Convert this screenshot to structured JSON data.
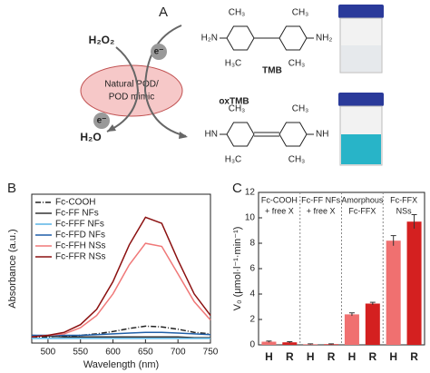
{
  "panel_a": {
    "label": "A",
    "reactant": "H₂O₂",
    "product": "H₂O",
    "electron": "e⁻",
    "enzyme": [
      "Natural POD/",
      "POD mimic"
    ],
    "substrate": "TMB",
    "oxidized": "oxTMB",
    "tmb_groups": [
      "H₂N",
      "NH₂",
      "CH₃",
      "CH₃",
      "H₃C",
      "CH₃"
    ],
    "oxtmb_groups": [
      "HN",
      "NH",
      "CH₃",
      "CH₃",
      "H₃C",
      "CH₃"
    ]
  },
  "chart_data": [
    {
      "panel": "B",
      "type": "line",
      "xlabel": "Wavelength (nm)",
      "ylabel": "Absorbance (a.u.)",
      "x": [
        475,
        500,
        525,
        550,
        575,
        600,
        625,
        650,
        675,
        700,
        725,
        750
      ],
      "xlim": [
        475,
        750
      ],
      "xticks": [
        500,
        550,
        600,
        650,
        700,
        750
      ],
      "ylim": [
        -0.02,
        0.95
      ],
      "legend": "upper left",
      "series": [
        {
          "name": "Fc-COOH",
          "color": "#222222",
          "style": "dashdot",
          "values": [
            0.02,
            0.02,
            0.025,
            0.03,
            0.04,
            0.055,
            0.075,
            0.09,
            0.085,
            0.07,
            0.05,
            0.04
          ]
        },
        {
          "name": "Fc-FF NFs",
          "color": "#333333",
          "style": "solid",
          "values": [
            0.03,
            0.025,
            0.02,
            0.02,
            0.02,
            0.02,
            0.02,
            0.02,
            0.02,
            0.02,
            0.015,
            0.015
          ]
        },
        {
          "name": "Fc-FFF NFs",
          "color": "#5ab4e5",
          "style": "solid",
          "values": [
            0.01,
            0.01,
            0.01,
            0.01,
            0.01,
            0.01,
            0.01,
            0.01,
            0.01,
            0.01,
            0.01,
            0.01
          ]
        },
        {
          "name": "Fc-FFD NFs",
          "color": "#1f5fa8",
          "style": "solid",
          "values": [
            0.03,
            0.03,
            0.03,
            0.03,
            0.035,
            0.04,
            0.045,
            0.05,
            0.05,
            0.045,
            0.04,
            0.035
          ]
        },
        {
          "name": "Fc-FFH NSs",
          "color": "#f07878",
          "style": "solid",
          "values": [
            0.02,
            0.03,
            0.04,
            0.08,
            0.16,
            0.3,
            0.49,
            0.63,
            0.61,
            0.43,
            0.25,
            0.13
          ]
        },
        {
          "name": "Fc-FFR NSs",
          "color": "#8b1010",
          "style": "solid",
          "values": [
            0.02,
            0.03,
            0.05,
            0.1,
            0.2,
            0.38,
            0.62,
            0.8,
            0.76,
            0.52,
            0.3,
            0.16
          ]
        }
      ]
    },
    {
      "panel": "C",
      "type": "bar",
      "ylabel": "V₀ (μmol·l⁻¹·min⁻¹)",
      "categories": [
        "H",
        "R",
        "H",
        "R",
        "H",
        "R",
        "H",
        "R"
      ],
      "values": [
        0.25,
        0.2,
        0.05,
        0.05,
        2.4,
        3.25,
        8.2,
        9.7
      ],
      "errors": [
        0.05,
        0.05,
        0.03,
        0.03,
        0.12,
        0.1,
        0.4,
        0.55
      ],
      "colors": [
        "#f07070",
        "#d42020",
        "#f07070",
        "#d42020",
        "#f07070",
        "#d42020",
        "#f07070",
        "#d42020"
      ],
      "groups": [
        {
          "lines": [
            "Fc-COOH",
            "+ free X"
          ]
        },
        {
          "lines": [
            "Fc-FF NFs",
            "+ free X"
          ]
        },
        {
          "lines": [
            "Amorphous",
            "Fc-FFX"
          ]
        },
        {
          "lines": [
            "Fc-FFX",
            "NSs"
          ]
        }
      ],
      "ylim": [
        0,
        12
      ],
      "yticks": [
        0,
        2,
        4,
        6,
        8,
        10,
        12
      ]
    }
  ]
}
